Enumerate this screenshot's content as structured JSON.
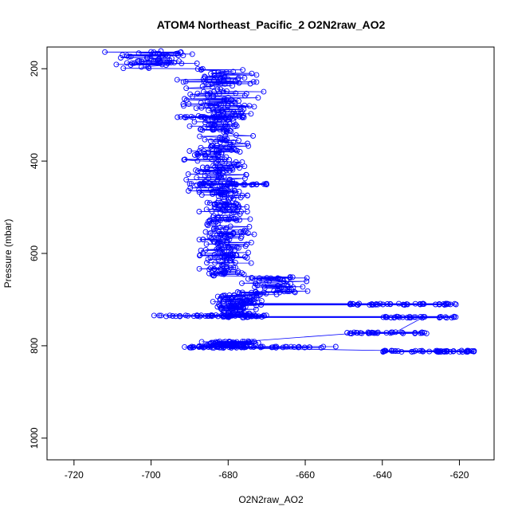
{
  "chart_data": {
    "type": "scatter",
    "title": "ATOM4 Northeast_Pacific_2 O2N2raw_AO2",
    "xlabel": "O2N2raw_AO2",
    "ylabel": "Pressure (mbar)",
    "xlim": [
      -727,
      -611
    ],
    "ylim": [
      1047,
      153
    ],
    "y_reversed": true,
    "x_ticks": [
      -720,
      -700,
      -680,
      -660,
      -640,
      -620
    ],
    "y_ticks": [
      200,
      400,
      600,
      800,
      1000
    ],
    "grid": false,
    "marker": "open-circle",
    "connected": true,
    "series_color": "#0000ff",
    "segments": [
      {
        "p_range": [
          160,
          200
        ],
        "x_center": -700,
        "x_spread": 16,
        "count": 60
      },
      {
        "p_range": [
          200,
          300
        ],
        "x_center": -682,
        "x_spread": 14,
        "count": 120
      },
      {
        "p_range": [
          300,
          480
        ],
        "x_center": -682,
        "x_spread": 11,
        "count": 210
      },
      {
        "p_range": [
          480,
          650
        ],
        "x_center": -681,
        "x_spread": 9,
        "count": 200
      },
      {
        "p_range": [
          650,
          690
        ],
        "x_center": -670,
        "x_spread": 14,
        "count": 60
      },
      {
        "p_range": [
          690,
          740
        ],
        "x_center": -678,
        "x_spread": 10,
        "count": 120
      },
      {
        "p_range": [
          790,
          805
        ],
        "x_center": -680,
        "x_spread": 11,
        "count": 70
      }
    ],
    "bands": [
      {
        "p": 305,
        "x_range": [
          -695,
          -675
        ],
        "count": 25
      },
      {
        "p": 450,
        "x_range": [
          -690,
          -670
        ],
        "count": 30
      },
      {
        "p": 710,
        "x_range": [
          -650,
          -620
        ],
        "count": 45
      },
      {
        "p": 735,
        "x_range": [
          -700,
          -670
        ],
        "count": 45
      },
      {
        "p": 738,
        "x_range": [
          -640,
          -620
        ],
        "count": 30
      },
      {
        "p": 772,
        "x_range": [
          -650,
          -628
        ],
        "count": 35
      },
      {
        "p": 803,
        "x_range": [
          -692,
          -651
        ],
        "count": 50
      },
      {
        "p": 812,
        "x_range": [
          -640,
          -616
        ],
        "count": 55
      }
    ]
  }
}
